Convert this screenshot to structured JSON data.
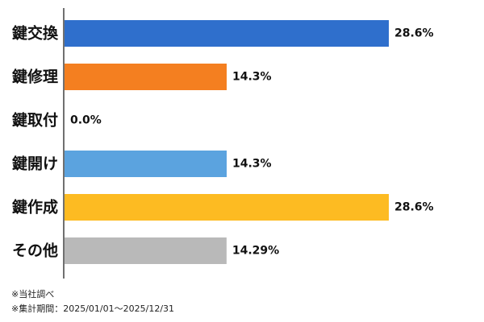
{
  "chart_data": {
    "type": "bar",
    "orientation": "horizontal",
    "categories": [
      "鍵交換",
      "鍵修理",
      "鍵取付",
      "鍵開け",
      "鍵作成",
      "その他"
    ],
    "values": [
      28.6,
      14.3,
      0.0,
      14.3,
      28.6,
      14.29
    ],
    "value_labels": [
      "28.6%",
      "14.3%",
      "0.0%",
      "14.3%",
      "28.6%",
      "14.29%"
    ],
    "colors": [
      "#2F6FCC",
      "#F47F20",
      "#9E9E9E",
      "#5BA3DF",
      "#FDBB22",
      "#B9B9B9"
    ],
    "xlim": [
      0,
      40
    ],
    "grid": false,
    "legend": "none"
  },
  "notes": {
    "source": "※当社調べ",
    "period": "※集計期間：2025/01/01～2025/12/31"
  }
}
